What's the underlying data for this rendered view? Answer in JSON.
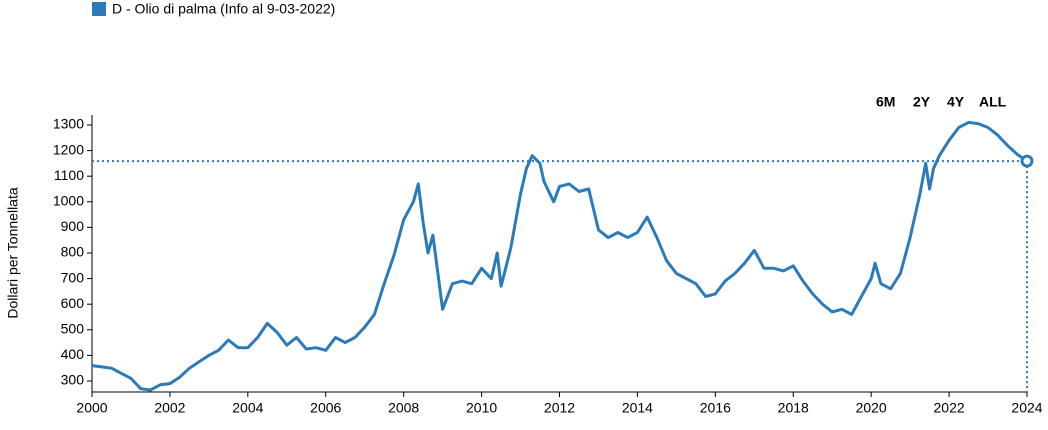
{
  "chart_data": {
    "type": "line",
    "legend": "D - Olio di palma (Info al 9-03-2022)",
    "ylabel": "Dollari per Tonnellata",
    "buttons": [
      "6M",
      "2Y",
      "4Y",
      "ALL"
    ],
    "series": [
      {
        "name": "D - Olio di palma (Info al 9-03-2022)",
        "color": "#2b7bba",
        "x": [
          2000,
          2000.25,
          2000.5,
          2000.75,
          2001,
          2001.25,
          2001.5,
          2001.75,
          2002,
          2002.25,
          2002.5,
          2002.75,
          2003,
          2003.25,
          2003.5,
          2003.75,
          2004,
          2004.25,
          2004.5,
          2004.75,
          2005,
          2005.25,
          2005.5,
          2005.75,
          2006,
          2006.25,
          2006.5,
          2006.75,
          2007,
          2007.25,
          2007.5,
          2007.75,
          2008,
          2008.25,
          2008.375,
          2008.5,
          2008.625,
          2008.75,
          2009,
          2009.25,
          2009.5,
          2009.75,
          2010,
          2010.25,
          2010.4,
          2010.5,
          2010.75,
          2011,
          2011.15,
          2011.3,
          2011.5,
          2011.6,
          2011.85,
          2012,
          2012.25,
          2012.5,
          2012.75,
          2013,
          2013.25,
          2013.5,
          2013.75,
          2014,
          2014.25,
          2014.5,
          2014.75,
          2015,
          2015.25,
          2015.5,
          2015.75,
          2016,
          2016.25,
          2016.5,
          2016.75,
          2017,
          2017.25,
          2017.5,
          2017.75,
          2018,
          2018.25,
          2018.5,
          2018.75,
          2019,
          2019.25,
          2019.5,
          2019.75,
          2020,
          2020.1,
          2020.25,
          2020.5,
          2020.75,
          2021,
          2021.25,
          2021.4,
          2021.5,
          2021.6,
          2021.75,
          2022,
          2022.25,
          2022.5,
          2022.75,
          2023,
          2023.25,
          2023.5,
          2023.75,
          2024
        ],
        "values": [
          360,
          355,
          350,
          330,
          310,
          270,
          265,
          285,
          290,
          315,
          350,
          375,
          400,
          420,
          460,
          430,
          430,
          470,
          525,
          490,
          440,
          470,
          425,
          430,
          420,
          470,
          450,
          470,
          510,
          560,
          680,
          790,
          930,
          1000,
          1070,
          920,
          800,
          870,
          580,
          680,
          690,
          680,
          740,
          700,
          800,
          670,
          820,
          1030,
          1130,
          1180,
          1150,
          1080,
          1000,
          1060,
          1070,
          1040,
          1050,
          890,
          860,
          880,
          860,
          880,
          940,
          860,
          770,
          720,
          700,
          680,
          630,
          640,
          690,
          720,
          760,
          810,
          740,
          740,
          730,
          750,
          690,
          640,
          600,
          570,
          580,
          560,
          630,
          700,
          760,
          680,
          660,
          720,
          860,
          1030,
          1150,
          1050,
          1130,
          1180,
          1240,
          1290,
          1310,
          1305,
          1290,
          1260,
          1220,
          1185,
          1159
        ]
      }
    ],
    "xlim": [
      2000,
      2024
    ],
    "xticks": [
      2000,
      2002,
      2004,
      2006,
      2008,
      2010,
      2012,
      2014,
      2016,
      2018,
      2020,
      2022,
      2024
    ],
    "ylim": [
      257,
      1339
    ],
    "yticks": [
      300,
      400,
      500,
      600,
      700,
      800,
      900,
      1000,
      1100,
      1200,
      1300
    ]
  }
}
